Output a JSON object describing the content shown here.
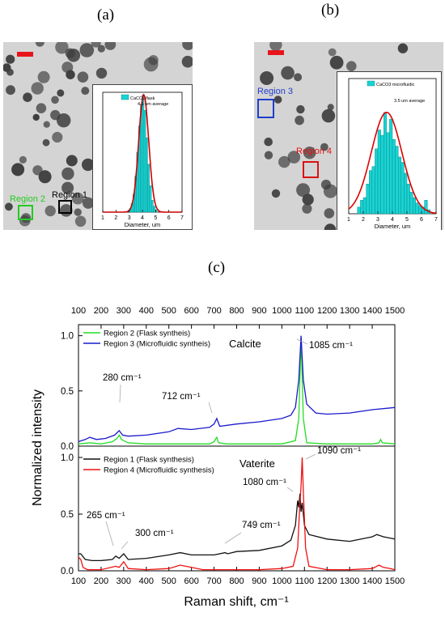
{
  "labels": {
    "a": "(a)",
    "b": "(b)",
    "c": "(c)"
  },
  "panel_a": {
    "regions": [
      {
        "name": "Region 1",
        "color": "#000000"
      },
      {
        "name": "Region 2",
        "color": "#22cc22"
      }
    ],
    "scale_bar_color": "#e8141b"
  },
  "panel_b": {
    "regions": [
      {
        "name": "Region 3",
        "color": "#1f3fcc"
      },
      {
        "name": "Region 4",
        "color": "#dd1111"
      }
    ],
    "scale_bar_color": "#e8141b"
  },
  "chart_data": [
    {
      "type": "bar",
      "id": "inset-a",
      "legend": "CaCO3 flask",
      "annotation": "4.1 um average",
      "xlabel": "Diameter, um",
      "xlim": [
        1,
        7
      ],
      "xticks": [
        1,
        2,
        3,
        4,
        5,
        6,
        7
      ],
      "bin_width": 0.14,
      "bins": [
        3.0,
        3.14,
        3.28,
        3.42,
        3.56,
        3.7,
        3.84,
        3.98,
        4.12,
        4.26,
        4.4,
        4.54,
        4.68,
        4.82,
        4.96
      ],
      "values": [
        0.03,
        0.07,
        0.15,
        0.3,
        0.5,
        0.72,
        0.9,
        0.98,
        0.85,
        0.62,
        0.4,
        0.22,
        0.1,
        0.05,
        0.02
      ],
      "fit": {
        "type": "gaussian",
        "mean": 4.1,
        "sigma": 0.38,
        "color": "#cc0000"
      },
      "bar_color": "#19d3d3"
    },
    {
      "type": "bar",
      "id": "inset-b",
      "legend": "CaCO3 microfluidic",
      "annotation": "3.5 um average",
      "xlabel": "Diameter, um",
      "xlim": [
        1,
        7
      ],
      "xticks": [
        1,
        2,
        3,
        4,
        5,
        6,
        7
      ],
      "bin_width": 0.2,
      "bins": [
        1.6,
        1.8,
        2.0,
        2.2,
        2.4,
        2.6,
        2.8,
        3.0,
        3.2,
        3.4,
        3.6,
        3.8,
        4.0,
        4.2,
        4.4,
        4.6,
        4.8,
        5.0,
        5.2,
        5.4,
        5.6,
        5.8,
        6.0,
        6.2,
        6.4
      ],
      "values": [
        0.05,
        0.1,
        0.12,
        0.22,
        0.32,
        0.35,
        0.48,
        0.62,
        0.58,
        0.75,
        0.6,
        0.7,
        0.55,
        0.5,
        0.42,
        0.38,
        0.3,
        0.22,
        0.16,
        0.12,
        0.08,
        0.06,
        0.05,
        0.1,
        0.03
      ],
      "fit": {
        "type": "gaussian",
        "mean": 3.6,
        "sigma": 1.05,
        "color": "#dd0000"
      },
      "bar_color": "#19d3d3"
    },
    {
      "type": "line",
      "id": "raman-top",
      "xlabel": "Raman shift, cm⁻¹",
      "ylabel": "Normalized intensity",
      "xlim": [
        100,
        1500
      ],
      "ylim": [
        0,
        1.1
      ],
      "xticks": [
        100,
        200,
        300,
        400,
        500,
        600,
        700,
        800,
        900,
        1000,
        1100,
        1200,
        1300,
        1400,
        1500
      ],
      "yticks": [
        0.0,
        0.5,
        1.0
      ],
      "title_in_plot": "Calcite",
      "legend_position": "top-left",
      "series": [
        {
          "name": "Region 2 (Flask syntheis)",
          "color": "#22dd22",
          "x": [
            100,
            150,
            200,
            250,
            270,
            280,
            290,
            320,
            400,
            500,
            600,
            680,
            700,
            712,
            720,
            760,
            900,
            1000,
            1060,
            1075,
            1085,
            1095,
            1110,
            1200,
            1300,
            1400,
            1430,
            1437,
            1445,
            1500
          ],
          "y": [
            0.02,
            0.03,
            0.02,
            0.04,
            0.07,
            0.1,
            0.06,
            0.03,
            0.02,
            0.02,
            0.02,
            0.02,
            0.04,
            0.08,
            0.03,
            0.02,
            0.02,
            0.02,
            0.05,
            0.25,
            0.98,
            0.25,
            0.03,
            0.02,
            0.02,
            0.02,
            0.03,
            0.06,
            0.03,
            0.02
          ]
        },
        {
          "name": "Region 3 (Microfluidic syntheis)",
          "color": "#1a1acc",
          "x": [
            100,
            130,
            150,
            180,
            220,
            260,
            280,
            295,
            320,
            400,
            500,
            540,
            600,
            680,
            700,
            712,
            725,
            800,
            900,
            1000,
            1040,
            1060,
            1075,
            1085,
            1095,
            1110,
            1150,
            1200,
            1300,
            1400,
            1500
          ],
          "y": [
            0.04,
            0.06,
            0.08,
            0.06,
            0.07,
            0.1,
            0.14,
            0.1,
            0.09,
            0.1,
            0.13,
            0.16,
            0.15,
            0.17,
            0.2,
            0.25,
            0.18,
            0.2,
            0.22,
            0.25,
            0.28,
            0.35,
            0.6,
            1.0,
            0.6,
            0.38,
            0.3,
            0.29,
            0.3,
            0.33,
            0.35
          ]
        }
      ],
      "annotations": [
        {
          "text": "1085 cm⁻¹",
          "x": 1085,
          "y": 0.98
        },
        {
          "text": "280 cm⁻¹",
          "x": 280,
          "y": 0.14
        },
        {
          "text": "712 cm⁻¹",
          "x": 712,
          "y": 0.25
        }
      ]
    },
    {
      "type": "line",
      "id": "raman-bottom",
      "xlabel": "Raman shift, cm⁻¹",
      "ylabel": "Normalized intensity",
      "xlim": [
        100,
        1500
      ],
      "ylim": [
        0,
        1.1
      ],
      "xticks": [
        100,
        200,
        300,
        400,
        500,
        600,
        700,
        800,
        900,
        1000,
        1100,
        1200,
        1300,
        1400,
        1500
      ],
      "yticks": [
        0.0,
        0.5,
        1.0
      ],
      "title_in_plot": "Vaterite",
      "legend_position": "top-left",
      "series": [
        {
          "name": "Region 1 (Flask synthesis)",
          "color": "#111111",
          "x": [
            100,
            110,
            130,
            160,
            200,
            250,
            265,
            280,
            300,
            320,
            400,
            500,
            550,
            600,
            700,
            749,
            760,
            800,
            900,
            1000,
            1040,
            1060,
            1070,
            1075,
            1080,
            1085,
            1090,
            1100,
            1120,
            1200,
            1300,
            1400,
            1420,
            1450,
            1500
          ],
          "y": [
            0.15,
            0.15,
            0.1,
            0.09,
            0.09,
            0.1,
            0.13,
            0.11,
            0.15,
            0.1,
            0.11,
            0.14,
            0.16,
            0.14,
            0.14,
            0.16,
            0.15,
            0.17,
            0.18,
            0.22,
            0.27,
            0.4,
            0.62,
            0.56,
            0.68,
            0.52,
            0.6,
            0.4,
            0.32,
            0.28,
            0.26,
            0.3,
            0.32,
            0.3,
            0.28
          ]
        },
        {
          "name": "Region 4 (Microfluidic synthesis)",
          "color": "#ee1111",
          "x": [
            100,
            110,
            120,
            140,
            200,
            265,
            280,
            300,
            320,
            400,
            500,
            550,
            600,
            650,
            700,
            749,
            800,
            900,
            1000,
            1050,
            1070,
            1080,
            1085,
            1090,
            1095,
            1105,
            1120,
            1200,
            1300,
            1400,
            1430,
            1450,
            1480,
            1500
          ],
          "y": [
            0.12,
            0.1,
            0.03,
            0.01,
            0.01,
            0.04,
            0.03,
            0.08,
            0.02,
            0.01,
            0.02,
            0.05,
            0.03,
            0.01,
            0.01,
            0.01,
            0.01,
            0.01,
            0.02,
            0.04,
            0.2,
            0.6,
            0.75,
            1.0,
            0.7,
            0.2,
            0.04,
            0.01,
            0.01,
            0.02,
            0.05,
            0.03,
            0.02,
            0.01
          ]
        }
      ],
      "annotations": [
        {
          "text": "1090 cm⁻¹",
          "x": 1090,
          "y": 1.0
        },
        {
          "text": "1080 cm⁻¹",
          "x": 1080,
          "y": 0.68
        },
        {
          "text": "265 cm⁻¹",
          "x": 265,
          "y": 0.13
        },
        {
          "text": "300 cm⁻¹",
          "x": 300,
          "y": 0.15
        },
        {
          "text": "749 cm⁻¹",
          "x": 749,
          "y": 0.16
        }
      ]
    }
  ]
}
